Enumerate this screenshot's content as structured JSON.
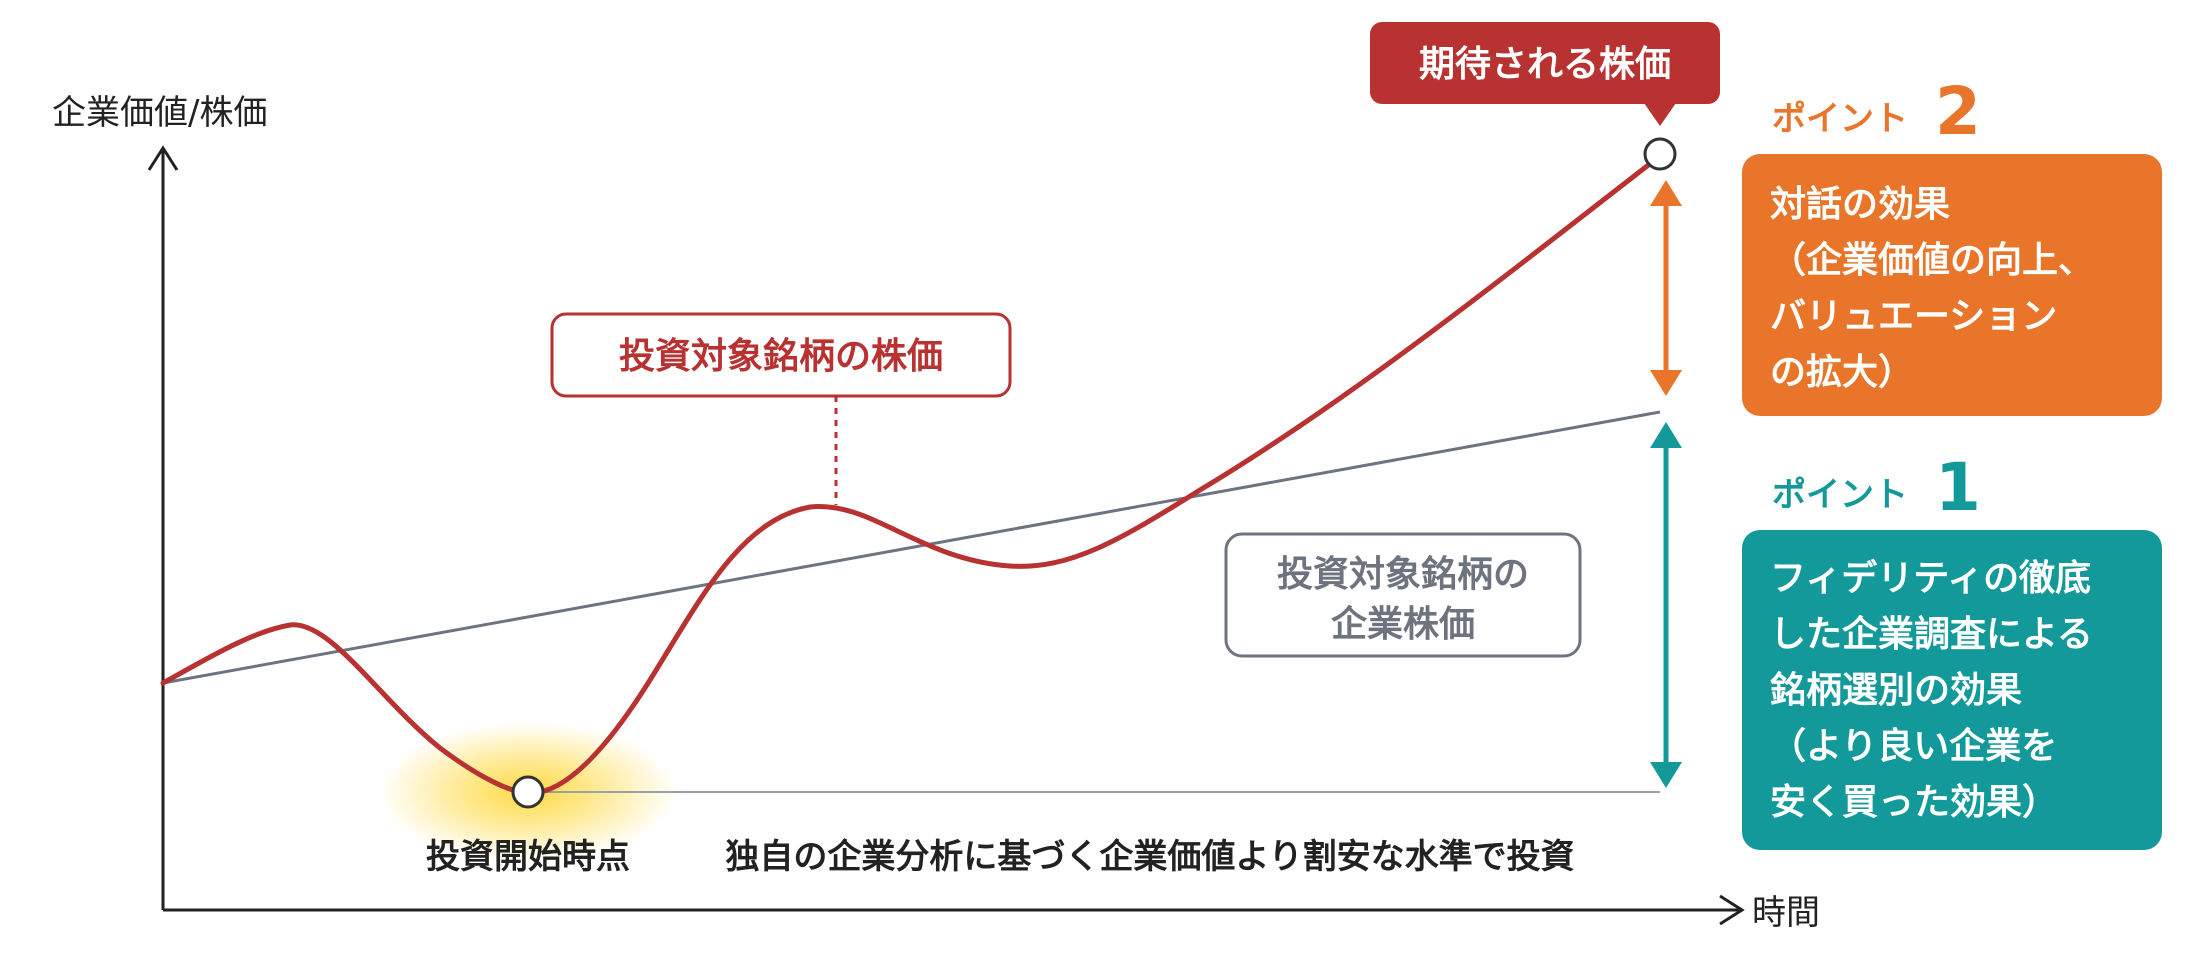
{
  "axis": {
    "y_label": "企業価値/株価",
    "x_label": "時間"
  },
  "labels": {
    "expected_price": "期待される株価",
    "target_stock_price": "投資対象銘柄の株価",
    "target_corporate_value": [
      "投資対象銘柄の",
      "企業株価"
    ],
    "investment_start": "投資開始時点",
    "investment_note": "独自の企業分析に基づく企業価値より割安な水準で投資"
  },
  "points": [
    {
      "prefix": "ポイント",
      "number": "2",
      "color": "#e8752a",
      "lines": [
        "対話の効果",
        "（企業価値の向上、",
        "バリュエーション",
        "の拡大）"
      ]
    },
    {
      "prefix": "ポイント",
      "number": "1",
      "color": "#14999a",
      "lines": [
        "フィデリティの徹底",
        "した企業調査による",
        "銘柄選別の効果",
        "（より良い企業を",
        "安く買った効果）"
      ]
    }
  ],
  "colors": {
    "stock_line": "#b83232",
    "value_line": "#6d7480",
    "orange": "#e8752a",
    "teal": "#14999a",
    "axis": "#222222"
  }
}
